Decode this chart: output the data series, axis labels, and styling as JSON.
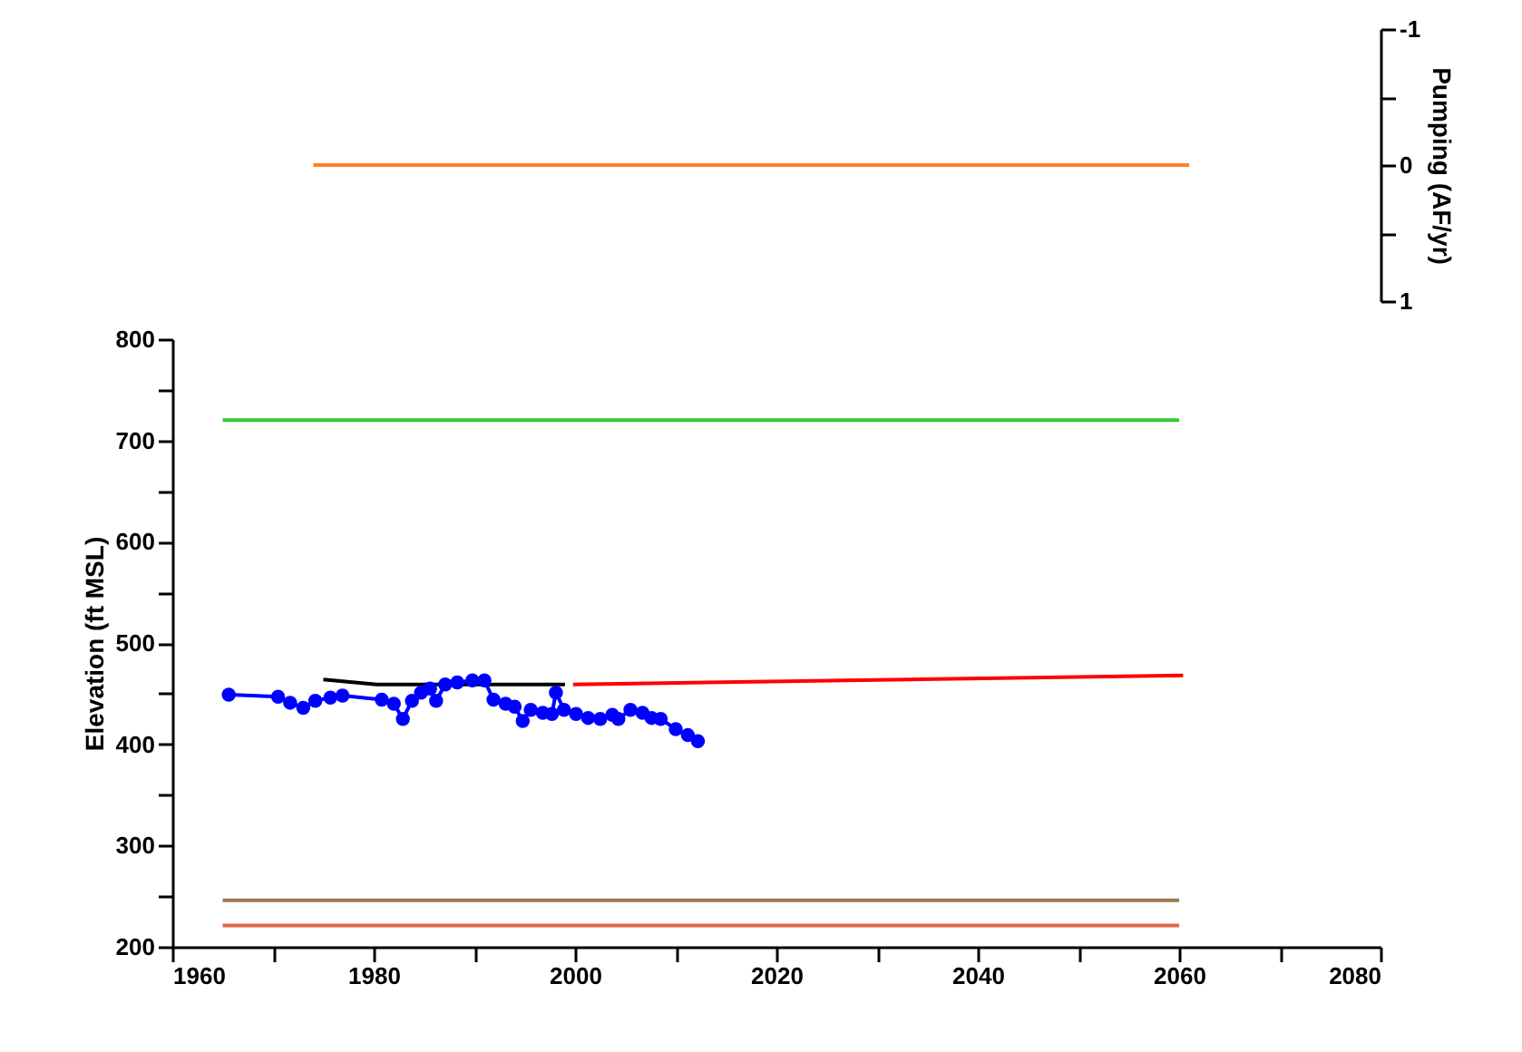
{
  "chart_data": [
    {
      "type": "line",
      "xlim": [
        1960,
        2080
      ],
      "y2lim": [
        1,
        -1
      ],
      "y2ticks": [
        -1,
        {
          "value": -0.5,
          "label": null
        },
        0,
        {
          "value": 0.5,
          "label": null
        },
        1
      ],
      "y2label": "Pumping (AF/yr)",
      "tick_labels": "y",
      "grid": false,
      "line_style": "solid",
      "series": [
        {
          "color": "#ff7f27",
          "axis": "y2",
          "x": [
            1974,
            2061
          ],
          "values": [
            0,
            0
          ]
        }
      ]
    },
    {
      "type": "line",
      "xlim": [
        1960,
        2080
      ],
      "ylim": [
        200,
        800
      ],
      "xticks": [
        1960,
        {
          "value": 1970,
          "label": null
        },
        1980,
        {
          "value": 1990,
          "label": null
        },
        2000,
        {
          "value": 2010,
          "label": null
        },
        2020,
        {
          "value": 2030,
          "label": null
        },
        2040,
        {
          "value": 2050,
          "label": null
        },
        2060,
        {
          "value": 2070,
          "label": null
        },
        2080
      ],
      "yticks": [
        200,
        {
          "value": 250,
          "label": null
        },
        300,
        {
          "value": 350,
          "label": null
        },
        400,
        {
          "value": 450,
          "label": null
        },
        500,
        {
          "value": 550,
          "label": null
        },
        600,
        {
          "value": 650,
          "label": null
        },
        700,
        {
          "value": 750,
          "label": null
        },
        800
      ],
      "ylabel": "Elevation (ft MSL)",
      "grid": false,
      "line_style": "solid",
      "series": [
        {
          "color": "#33cc33",
          "x": [
            1965,
            2060
          ],
          "values": [
            720,
            720
          ]
        },
        {
          "color": "#a07850",
          "x": [
            1965,
            2060
          ],
          "values": [
            246,
            246
          ]
        },
        {
          "color": "#e06848",
          "x": [
            1965,
            2060
          ],
          "values": [
            221,
            221
          ]
        },
        {
          "color": "#000000",
          "x": [
            1975,
            1980.3,
            1999
          ],
          "values": [
            464,
            459,
            459
          ]
        },
        {
          "color": "#ff0000",
          "x": [
            1999.8,
            2060.4
          ],
          "values": [
            459,
            468
          ]
        },
        {
          "color": "#0000ff",
          "marker": "circle",
          "x": [
            1965.6,
            1970.5,
            1971.7,
            1973.0,
            1974.2,
            1975.7,
            1976.9,
            1980.8,
            1982.0,
            1982.9,
            1983.8,
            1984.7,
            1985.6,
            1986.2,
            1987.1,
            1988.3,
            1989.8,
            1991.0,
            1991.9,
            1993.1,
            1994.0,
            1994.8,
            1995.6,
            1996.8,
            1997.7,
            1998.1,
            1998.9,
            2000.1,
            2001.3,
            2002.5,
            2003.7,
            2004.3,
            2005.5,
            2006.7,
            2007.6,
            2008.5,
            2010.0,
            2011.2,
            2012.2
          ],
          "values": [
            449,
            447,
            441,
            436,
            443,
            446,
            448,
            444,
            440,
            425,
            443,
            451,
            455,
            443,
            459,
            461,
            463,
            463,
            444,
            440,
            437,
            423,
            434,
            431,
            430,
            451,
            434,
            430,
            426,
            425,
            429,
            425,
            434,
            431,
            426,
            425,
            415,
            409,
            403
          ]
        }
      ]
    }
  ]
}
